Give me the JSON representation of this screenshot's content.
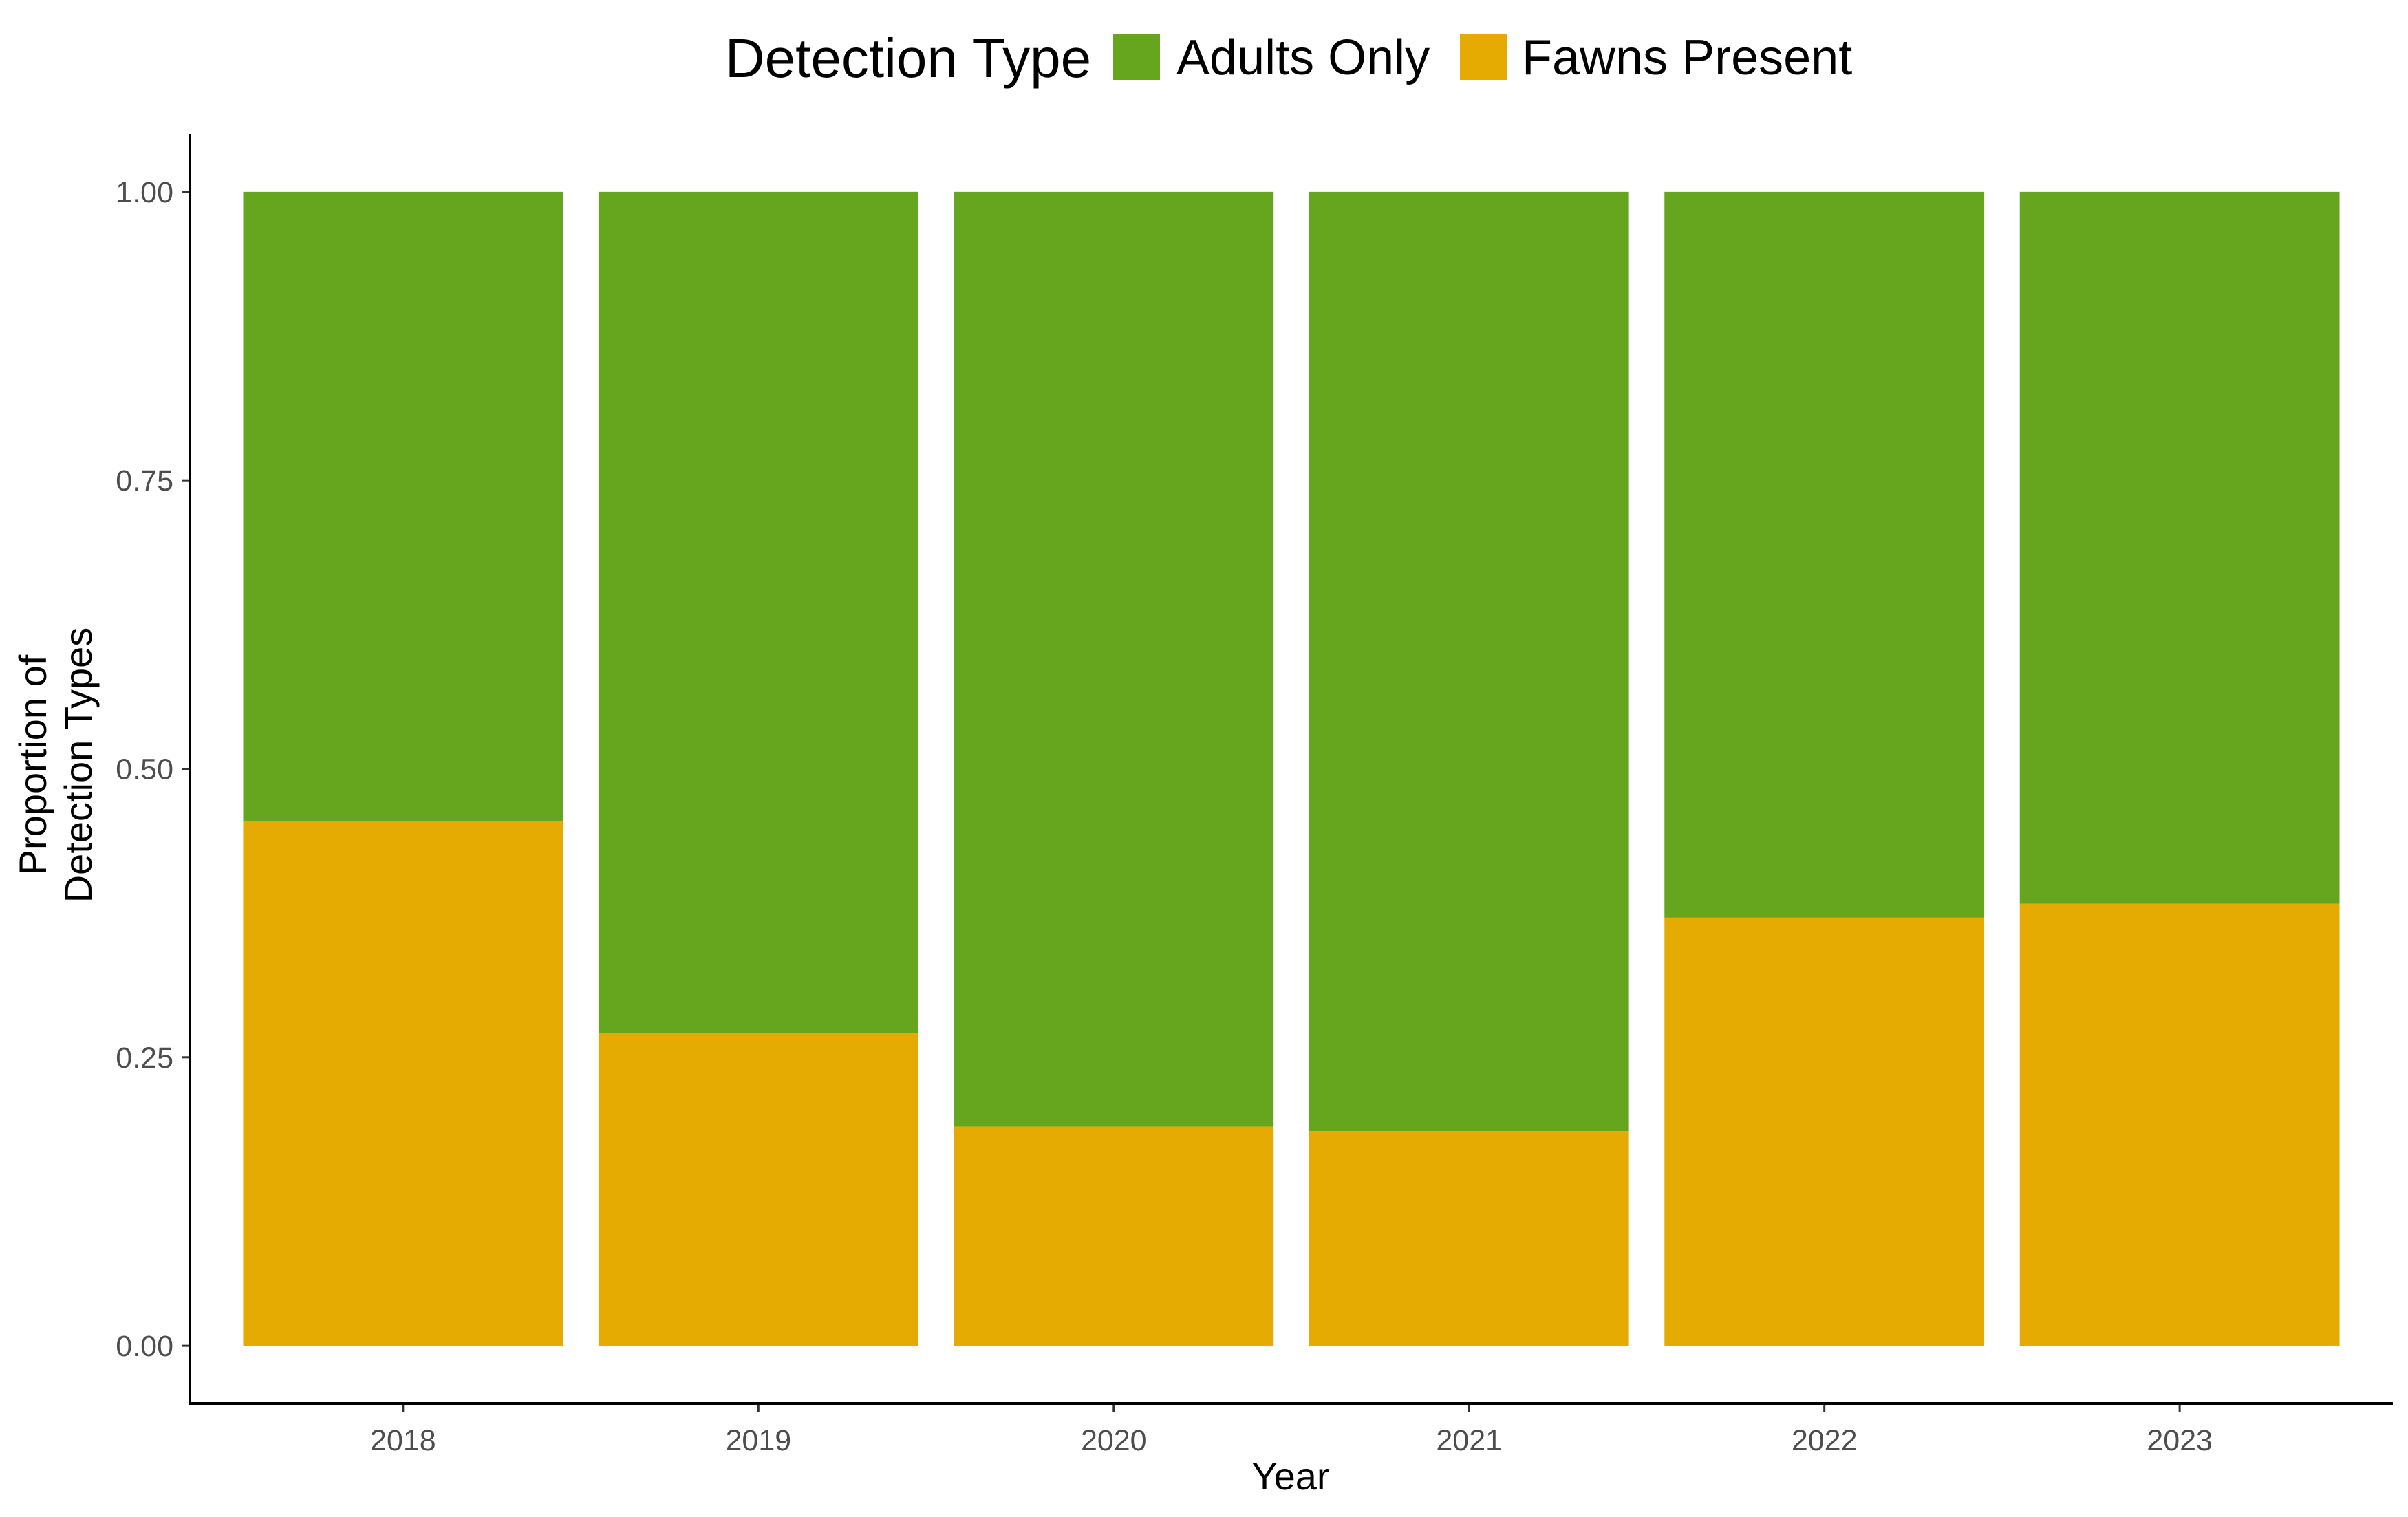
{
  "chart_data": {
    "type": "bar",
    "stacked": true,
    "categories": [
      "2018",
      "2019",
      "2020",
      "2021",
      "2022",
      "2023"
    ],
    "series": [
      {
        "name": "Adults Only",
        "color": "#66A61E",
        "values": [
          0.545,
          0.729,
          0.81,
          0.814,
          0.629,
          0.617
        ]
      },
      {
        "name": "Fawns Present",
        "color": "#E6AB02",
        "values": [
          0.455,
          0.271,
          0.19,
          0.186,
          0.371,
          0.383
        ]
      }
    ],
    "title": "",
    "xlabel": "Year",
    "ylabel": [
      "Proportion of",
      "Detection Types"
    ],
    "ylim": [
      -0.05,
      1.05
    ],
    "yticks": [
      "0.00",
      "0.25",
      "0.50",
      "0.75",
      "1.00"
    ],
    "ytick_values": [
      0,
      0.25,
      0.5,
      0.75,
      1
    ],
    "grid": false,
    "legend": {
      "title": "Detection Type",
      "position": "top",
      "entries": [
        "Adults Only",
        "Fawns Present"
      ]
    }
  }
}
